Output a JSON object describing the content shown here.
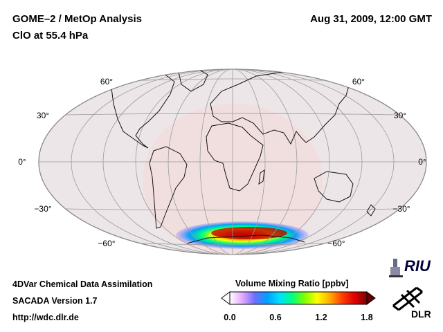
{
  "header": {
    "title": "GOME–2 / MetOp Analysis",
    "subtitle": "ClO at 55.4 hPa",
    "datetime": "Aug 31, 2009, 12:00 GMT"
  },
  "map": {
    "projection": "Hammer",
    "lat_labels_left": [
      "60°",
      "30°",
      "0°",
      "−30°",
      "−60°"
    ],
    "lat_labels_right": [
      "60°",
      "30°",
      "0°",
      "−30°",
      "−60°"
    ]
  },
  "footer": {
    "line1": "4DVar Chemical Data Assimilation",
    "line2": "SACADA Version 1.7",
    "line3": "http://wdc.dlr.de"
  },
  "colorbar": {
    "title": "Volume Mixing Ratio [ppbv]",
    "ticks": [
      "0.0",
      "0.6",
      "1.2",
      "1.8"
    ],
    "min": 0.0,
    "max": 1.8,
    "colors": [
      "#ffffff",
      "#e3a9ff",
      "#6e6eff",
      "#00a0ff",
      "#00e0ff",
      "#00ff80",
      "#80ff00",
      "#ffff00",
      "#ffb000",
      "#ff4000",
      "#e00000",
      "#800000"
    ]
  },
  "logos": {
    "riu": "RIU",
    "dlr": "DLR"
  }
}
